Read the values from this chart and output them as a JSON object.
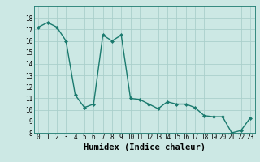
{
  "x": [
    0,
    1,
    2,
    3,
    4,
    5,
    6,
    7,
    8,
    9,
    10,
    11,
    12,
    13,
    14,
    15,
    16,
    17,
    18,
    19,
    20,
    21,
    22,
    23
  ],
  "y": [
    17.2,
    17.6,
    17.2,
    16.0,
    11.3,
    10.2,
    10.5,
    16.5,
    16.0,
    16.5,
    11.0,
    10.9,
    10.5,
    10.1,
    10.7,
    10.5,
    10.5,
    10.2,
    9.5,
    9.4,
    9.4,
    8.0,
    8.2,
    9.3
  ],
  "line_color": "#1a7a6e",
  "marker": "D",
  "marker_size": 2.0,
  "bg_color": "#cce8e4",
  "grid_color": "#aacfcb",
  "xlabel": "Humidex (Indice chaleur)",
  "ylim": [
    8,
    19
  ],
  "xlim": [
    -0.5,
    23.5
  ],
  "yticks": [
    8,
    9,
    10,
    11,
    12,
    13,
    14,
    15,
    16,
    17,
    18
  ],
  "xticks": [
    0,
    1,
    2,
    3,
    4,
    5,
    6,
    7,
    8,
    9,
    10,
    11,
    12,
    13,
    14,
    15,
    16,
    17,
    18,
    19,
    20,
    21,
    22,
    23
  ],
  "tick_fontsize": 5.5,
  "xlabel_fontsize": 7.5
}
